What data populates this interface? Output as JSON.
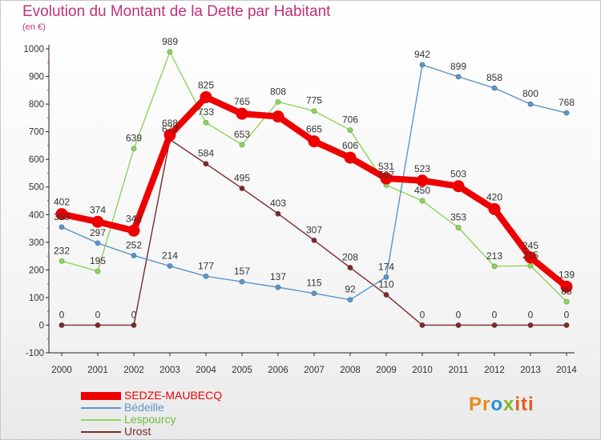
{
  "title": "Evolution du Montant de la Dette par Habitant",
  "unit": "(en €)",
  "logo": {
    "text": "Proxiti",
    "parts": [
      "Pr",
      "o",
      "x",
      "iti"
    ]
  },
  "chart_data": {
    "type": "line",
    "title": "Evolution du Montant de la Dette par Habitant",
    "subtitle": "(en €)",
    "x": [
      2000,
      2001,
      2002,
      2003,
      2004,
      2005,
      2006,
      2007,
      2008,
      2009,
      2010,
      2011,
      2012,
      2013,
      2014
    ],
    "ylim": [
      -100,
      1000
    ],
    "yticks": [
      -100,
      0,
      100,
      200,
      300,
      400,
      500,
      600,
      700,
      800,
      900,
      1000
    ],
    "grid": false,
    "legend_position": "bottom-left",
    "series": [
      {
        "name": "SEDZE-MAUBECQ",
        "color": "#ee0000",
        "emphasis": true,
        "values": [
          402,
          374,
          342,
          688,
          825,
          765,
          755,
          665,
          606,
          531,
          523,
          503,
          420,
          245,
          139
        ],
        "labels": [
          "402",
          "374",
          "342",
          "688",
          "825",
          "765",
          "",
          "665",
          "606",
          "531",
          "523",
          "503",
          "420",
          "245",
          "139"
        ]
      },
      {
        "name": "Bédeille",
        "color": "#5b95c9",
        "values": [
          355,
          297,
          252,
          214,
          177,
          157,
          137,
          115,
          92,
          174,
          942,
          899,
          858,
          800,
          768
        ],
        "labels": [
          "355",
          "297",
          "252",
          "214",
          "177",
          "157",
          "137",
          "115",
          "92",
          "174",
          "942",
          "899",
          "858",
          "800",
          "768"
        ]
      },
      {
        "name": "Lespourcy",
        "color": "#8ed45a",
        "values": [
          232,
          195,
          639,
          989,
          733,
          653,
          808,
          775,
          706,
          507,
          450,
          353,
          213,
          215,
          85
        ],
        "labels": [
          "232",
          "195",
          "639",
          "989",
          "733",
          "653",
          "808",
          "775",
          "706",
          "507",
          "450",
          "353",
          "213",
          "215",
          "85"
        ]
      },
      {
        "name": "Urost",
        "color": "#7a2b2b",
        "values": [
          0,
          0,
          0,
          672,
          584,
          495,
          403,
          307,
          208,
          110,
          0,
          0,
          0,
          0,
          0
        ],
        "labels": [
          "0",
          "0",
          "0",
          "672",
          "584",
          "495",
          "403",
          "307",
          "208",
          "110",
          "0",
          "0",
          "0",
          "0",
          "0"
        ]
      }
    ]
  }
}
